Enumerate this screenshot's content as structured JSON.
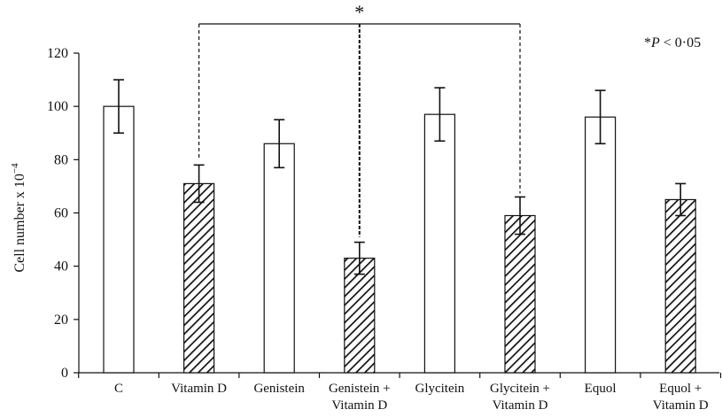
{
  "chart_data": {
    "type": "bar",
    "ylabel": "Cell number x 10",
    "ylabel_superscript": "−4",
    "ylim": [
      0,
      120
    ],
    "yticks": [
      0,
      20,
      40,
      60,
      80,
      100,
      120
    ],
    "grid": false,
    "categories": [
      {
        "lines": [
          "C"
        ],
        "value": 100,
        "error": 10,
        "pattern": "open"
      },
      {
        "lines": [
          "Vitamin D"
        ],
        "value": 71,
        "error": 7,
        "pattern": "hatched"
      },
      {
        "lines": [
          "Genistein"
        ],
        "value": 86,
        "error": 9,
        "pattern": "open"
      },
      {
        "lines": [
          "Genistein +",
          "Vitamin D"
        ],
        "value": 43,
        "error": 6,
        "pattern": "hatched"
      },
      {
        "lines": [
          "Glycitein"
        ],
        "value": 97,
        "error": 10,
        "pattern": "open"
      },
      {
        "lines": [
          "Glycitein +",
          "Vitamin D"
        ],
        "value": 59,
        "error": 7,
        "pattern": "hatched"
      },
      {
        "lines": [
          "Equol"
        ],
        "value": 96,
        "error": 10,
        "pattern": "open"
      },
      {
        "lines": [
          "Equol +",
          "Vitamin D"
        ],
        "value": 65,
        "error": 6,
        "pattern": "hatched"
      }
    ],
    "significance": {
      "marker": "*",
      "bracket_from": 1,
      "bracket_to": 5,
      "middle": 3,
      "note_star": "*",
      "note_p": "P",
      "note_rest": " < 0·05"
    }
  }
}
